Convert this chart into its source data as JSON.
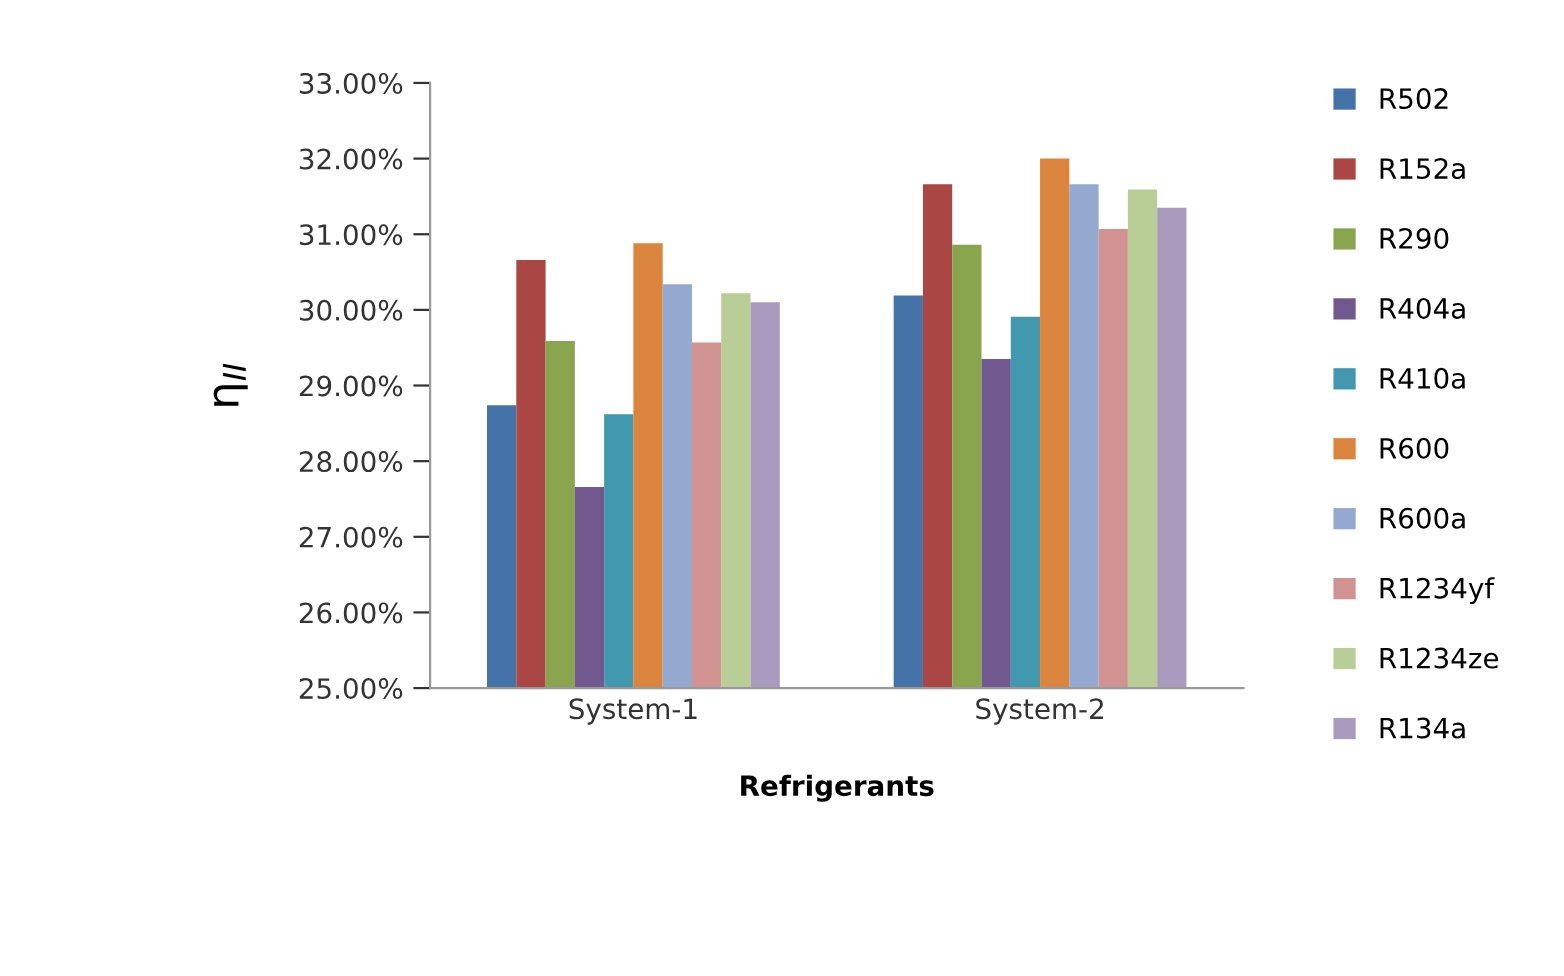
{
  "chart_data": {
    "type": "bar",
    "xlabel": "Refrigerants",
    "ylabel": "η$_{II}$",
    "categories": [
      "System-1",
      "System-2"
    ],
    "series": [
      {
        "name": "R502",
        "color": "#4572a7",
        "values": [
          28.74,
          30.19
        ]
      },
      {
        "name": "R152a",
        "color": "#aa4643",
        "values": [
          30.66,
          31.66
        ]
      },
      {
        "name": "R290",
        "color": "#89a54e",
        "values": [
          29.59,
          30.86
        ]
      },
      {
        "name": "R404a",
        "color": "#71588f",
        "values": [
          27.66,
          29.35
        ]
      },
      {
        "name": "R410a",
        "color": "#4198af",
        "values": [
          28.62,
          29.91
        ]
      },
      {
        "name": "R600",
        "color": "#db843d",
        "values": [
          30.88,
          32.0
        ]
      },
      {
        "name": "R600a",
        "color": "#93a9cf",
        "values": [
          30.34,
          31.66
        ]
      },
      {
        "name": "R1234yf",
        "color": "#d19392",
        "values": [
          29.57,
          31.07
        ]
      },
      {
        "name": "R1234ze",
        "color": "#b9cd96",
        "values": [
          30.22,
          31.59
        ]
      },
      {
        "name": "R134a",
        "color": "#a99bbd",
        "values": [
          30.1,
          31.35
        ]
      }
    ],
    "ylim": [
      25,
      33
    ],
    "yticks": [
      {
        "value": 25,
        "label": "25.00%"
      },
      {
        "value": 26,
        "label": "26.00%"
      },
      {
        "value": 27,
        "label": "27.00%"
      },
      {
        "value": 28,
        "label": "28.00%"
      },
      {
        "value": 29,
        "label": "29.00%"
      },
      {
        "value": 30,
        "label": "30.00%"
      },
      {
        "value": 31,
        "label": "31.00%"
      },
      {
        "value": 32,
        "label": "32.00%"
      },
      {
        "value": 33,
        "label": "33.00%"
      }
    ],
    "grid": false,
    "legend": "right"
  }
}
